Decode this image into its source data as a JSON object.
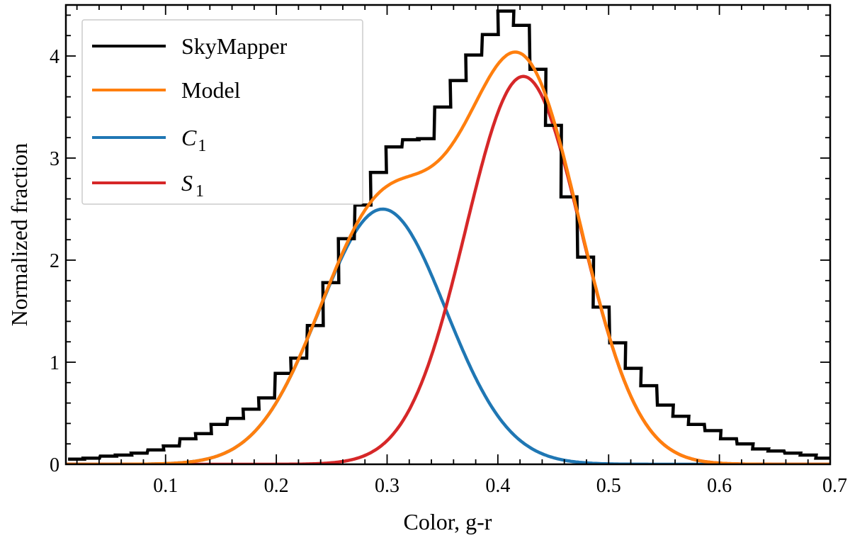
{
  "chart_data": {
    "type": "line",
    "title": "",
    "xlabel": "Color, g-r",
    "ylabel": "Normalized fraction",
    "xlim": [
      0.01,
      0.7
    ],
    "ylim": [
      0,
      4.5
    ],
    "x_ticks": [
      0.1,
      0.2,
      0.3,
      0.4,
      0.5,
      0.6,
      0.7
    ],
    "x_tick_labels": [
      "0.1",
      "0.2",
      "0.3",
      "0.4",
      "0.5",
      "0.6",
      "0.7"
    ],
    "y_ticks": [
      0,
      1,
      2,
      3,
      4
    ],
    "y_tick_labels": [
      "0",
      "1",
      "2",
      "3",
      "4"
    ],
    "grid": false,
    "legend_position": "top-left",
    "series": [
      {
        "name": "SkyMapper",
        "kind": "step-histogram",
        "color": "#000000",
        "bin_width": 0.0144,
        "bin_starts": [
          0.012,
          0.026,
          0.041,
          0.055,
          0.069,
          0.084,
          0.098,
          0.113,
          0.127,
          0.141,
          0.156,
          0.17,
          0.184,
          0.199,
          0.213,
          0.228,
          0.242,
          0.256,
          0.271,
          0.285,
          0.299,
          0.314,
          0.328,
          0.343,
          0.357,
          0.371,
          0.386,
          0.4,
          0.414,
          0.429,
          0.443,
          0.457,
          0.472,
          0.486,
          0.501,
          0.515,
          0.529,
          0.544,
          0.558,
          0.572,
          0.587,
          0.601,
          0.616,
          0.63,
          0.644,
          0.659,
          0.673,
          0.687
        ],
        "values": [
          0.05,
          0.06,
          0.08,
          0.09,
          0.11,
          0.14,
          0.18,
          0.25,
          0.3,
          0.39,
          0.45,
          0.54,
          0.65,
          0.89,
          1.04,
          1.36,
          1.78,
          2.21,
          2.54,
          2.86,
          3.11,
          3.18,
          3.19,
          3.5,
          3.76,
          4.01,
          4.21,
          4.44,
          4.3,
          3.87,
          3.32,
          2.62,
          2.03,
          1.54,
          1.19,
          0.94,
          0.77,
          0.58,
          0.47,
          0.39,
          0.33,
          0.25,
          0.2,
          0.15,
          0.13,
          0.11,
          0.09,
          0.06
        ]
      },
      {
        "name": "Model",
        "kind": "curve",
        "color": "#ff7f0e"
      },
      {
        "name": "C1",
        "kind": "gaussian",
        "color": "#1f77b4",
        "amplitude": 2.5,
        "mean": 0.296,
        "sigma": 0.057
      },
      {
        "name": "S1",
        "kind": "gaussian",
        "color": "#d62728",
        "amplitude": 3.8,
        "mean": 0.423,
        "sigma": 0.052
      }
    ]
  },
  "legend": {
    "entries": [
      {
        "label": "SkyMapper",
        "base": "",
        "sub": "",
        "color": "#000000"
      },
      {
        "label": "Model",
        "base": "",
        "sub": "",
        "color": "#ff7f0e"
      },
      {
        "label": "",
        "base": "C",
        "sub": "1",
        "color": "#1f77b4"
      },
      {
        "label": "",
        "base": "S",
        "sub": "1",
        "color": "#d62728"
      }
    ]
  }
}
